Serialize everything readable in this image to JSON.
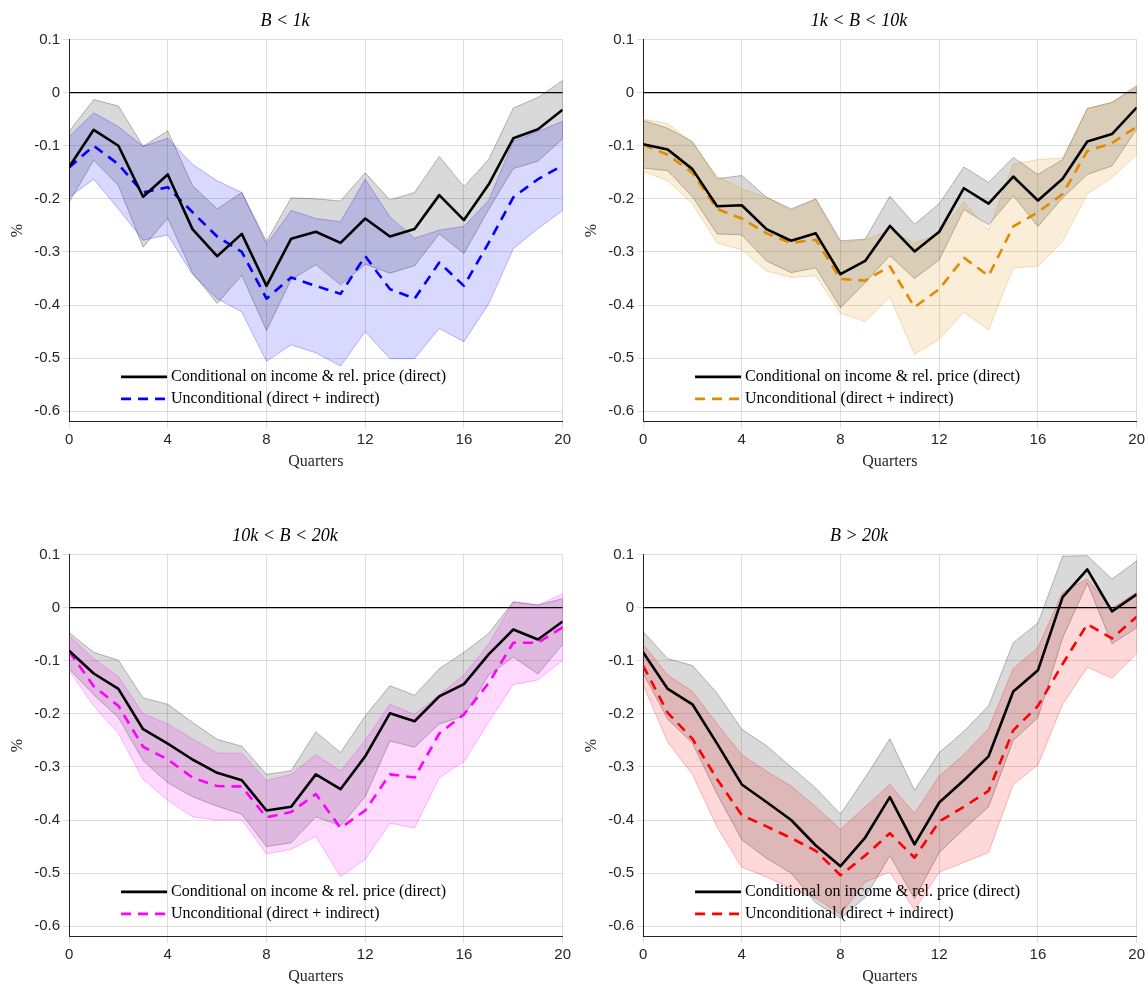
{
  "chart_data": [
    {
      "type": "line",
      "title": "B < 1k",
      "xlabel": "Quarters",
      "ylabel": "%",
      "x": [
        0,
        1,
        2,
        3,
        4,
        5,
        6,
        7,
        8,
        9,
        10,
        11,
        12,
        13,
        14,
        15,
        16,
        17,
        18,
        19,
        20
      ],
      "xlim": [
        0,
        20
      ],
      "xticks": [
        0,
        4,
        8,
        12,
        16,
        20
      ],
      "ylim": [
        -0.62,
        0.1
      ],
      "yticks": [
        -0.6,
        -0.5,
        -0.4,
        -0.3,
        -0.2,
        -0.1,
        0,
        0.1
      ],
      "grid": true,
      "legend": "bottom",
      "marker": "none",
      "ref_lines": [
        {
          "axis": "y",
          "value": 0,
          "color": "#000000"
        }
      ],
      "series": [
        {
          "name": "Conditional on income & rel. price (direct)",
          "color": "#000000",
          "line_style": "solid",
          "values": [
            -0.14,
            -0.07,
            -0.1,
            -0.196,
            -0.154,
            -0.257,
            -0.308,
            -0.266,
            -0.364,
            -0.275,
            -0.262,
            -0.283,
            -0.237,
            -0.271,
            -0.257,
            -0.193,
            -0.24,
            -0.173,
            -0.086,
            -0.069,
            -0.032
          ],
          "upper": [
            -0.073,
            -0.013,
            -0.025,
            -0.101,
            -0.072,
            -0.175,
            -0.219,
            -0.188,
            -0.28,
            -0.198,
            -0.2,
            -0.204,
            -0.151,
            -0.202,
            -0.188,
            -0.12,
            -0.177,
            -0.126,
            -0.029,
            -0.009,
            0.023
          ],
          "lower": [
            -0.207,
            -0.127,
            -0.175,
            -0.291,
            -0.236,
            -0.339,
            -0.397,
            -0.344,
            -0.448,
            -0.352,
            -0.324,
            -0.362,
            -0.323,
            -0.34,
            -0.326,
            -0.266,
            -0.303,
            -0.22,
            -0.143,
            -0.129,
            -0.087
          ]
        },
        {
          "name": "Unconditional (direct + indirect)",
          "color": "#0000ff",
          "line_style": "dashed",
          "values": [
            -0.141,
            -0.1,
            -0.135,
            -0.188,
            -0.178,
            -0.225,
            -0.271,
            -0.3,
            -0.388,
            -0.348,
            -0.364,
            -0.379,
            -0.308,
            -0.37,
            -0.388,
            -0.32,
            -0.364,
            -0.283,
            -0.197,
            -0.163,
            -0.137
          ],
          "upper": [
            -0.083,
            -0.038,
            -0.064,
            -0.101,
            -0.086,
            -0.135,
            -0.166,
            -0.188,
            -0.286,
            -0.222,
            -0.237,
            -0.243,
            -0.163,
            -0.234,
            -0.274,
            -0.259,
            -0.252,
            -0.203,
            -0.092,
            -0.073,
            -0.054
          ],
          "lower": [
            -0.197,
            -0.163,
            -0.219,
            -0.278,
            -0.268,
            -0.342,
            -0.388,
            -0.413,
            -0.506,
            -0.475,
            -0.49,
            -0.515,
            -0.45,
            -0.501,
            -0.501,
            -0.444,
            -0.469,
            -0.398,
            -0.294,
            -0.256,
            -0.222
          ]
        }
      ]
    },
    {
      "type": "line",
      "title": "1k < B < 10k",
      "xlabel": "Quarters",
      "ylabel": "%",
      "x": [
        0,
        1,
        2,
        3,
        4,
        5,
        6,
        7,
        8,
        9,
        10,
        11,
        12,
        13,
        14,
        15,
        16,
        17,
        18,
        19,
        20
      ],
      "xlim": [
        0,
        20
      ],
      "xticks": [
        0,
        4,
        8,
        12,
        16,
        20
      ],
      "ylim": [
        -0.62,
        0.1
      ],
      "yticks": [
        -0.6,
        -0.5,
        -0.4,
        -0.3,
        -0.2,
        -0.1,
        0,
        0.1
      ],
      "grid": true,
      "legend": "bottom",
      "marker": "none",
      "ref_lines": [
        {
          "axis": "y",
          "value": 0,
          "color": "#000000"
        }
      ],
      "series": [
        {
          "name": "Conditional on income & rel. price (direct)",
          "color": "#000000",
          "line_style": "solid",
          "values": [
            -0.097,
            -0.107,
            -0.144,
            -0.214,
            -0.212,
            -0.257,
            -0.279,
            -0.265,
            -0.342,
            -0.317,
            -0.251,
            -0.299,
            -0.262,
            -0.18,
            -0.209,
            -0.158,
            -0.203,
            -0.162,
            -0.092,
            -0.078,
            -0.028
          ],
          "upper": [
            -0.052,
            -0.067,
            -0.092,
            -0.162,
            -0.156,
            -0.197,
            -0.219,
            -0.2,
            -0.279,
            -0.276,
            -0.195,
            -0.248,
            -0.209,
            -0.14,
            -0.169,
            -0.122,
            -0.154,
            -0.126,
            -0.03,
            -0.018,
            0.013
          ],
          "lower": [
            -0.142,
            -0.147,
            -0.196,
            -0.266,
            -0.268,
            -0.317,
            -0.339,
            -0.33,
            -0.405,
            -0.358,
            -0.307,
            -0.35,
            -0.315,
            -0.22,
            -0.249,
            -0.194,
            -0.252,
            -0.198,
            -0.154,
            -0.138,
            -0.069
          ]
        },
        {
          "name": "Unconditional (direct + indirect)",
          "color": "#e08a00",
          "line_style": "dashed",
          "values": [
            -0.098,
            -0.117,
            -0.151,
            -0.219,
            -0.237,
            -0.265,
            -0.283,
            -0.277,
            -0.351,
            -0.354,
            -0.327,
            -0.404,
            -0.37,
            -0.311,
            -0.345,
            -0.252,
            -0.225,
            -0.191,
            -0.11,
            -0.095,
            -0.064
          ],
          "upper": [
            -0.05,
            -0.058,
            -0.095,
            -0.157,
            -0.181,
            -0.197,
            -0.222,
            -0.202,
            -0.283,
            -0.277,
            -0.259,
            -0.283,
            -0.265,
            -0.206,
            -0.259,
            -0.135,
            -0.126,
            -0.123,
            -0.03,
            -0.019,
            0.01
          ],
          "lower": [
            -0.148,
            -0.166,
            -0.209,
            -0.283,
            -0.296,
            -0.336,
            -0.348,
            -0.345,
            -0.416,
            -0.431,
            -0.385,
            -0.493,
            -0.465,
            -0.413,
            -0.447,
            -0.33,
            -0.327,
            -0.28,
            -0.191,
            -0.16,
            -0.117
          ]
        }
      ]
    },
    {
      "type": "line",
      "title": "10k < B < 20k",
      "xlabel": "Quarters",
      "ylabel": "%",
      "x": [
        0,
        1,
        2,
        3,
        4,
        5,
        6,
        7,
        8,
        9,
        10,
        11,
        12,
        13,
        14,
        15,
        16,
        17,
        18,
        19,
        20
      ],
      "xlim": [
        0,
        20
      ],
      "xticks": [
        0,
        4,
        8,
        12,
        16,
        20
      ],
      "ylim": [
        -0.62,
        0.1
      ],
      "yticks": [
        -0.6,
        -0.5,
        -0.4,
        -0.3,
        -0.2,
        -0.1,
        0,
        0.1
      ],
      "grid": true,
      "legend": "bottom",
      "marker": "none",
      "ref_lines": [
        {
          "axis": "y",
          "value": 0,
          "color": "#000000"
        }
      ],
      "series": [
        {
          "name": "Conditional on income & rel. price (direct)",
          "color": "#000000",
          "line_style": "solid",
          "values": [
            -0.081,
            -0.124,
            -0.153,
            -0.229,
            -0.256,
            -0.286,
            -0.311,
            -0.325,
            -0.382,
            -0.375,
            -0.314,
            -0.342,
            -0.28,
            -0.199,
            -0.214,
            -0.167,
            -0.144,
            -0.088,
            -0.041,
            -0.06,
            -0.026
          ],
          "upper": [
            -0.047,
            -0.084,
            -0.099,
            -0.17,
            -0.182,
            -0.216,
            -0.248,
            -0.261,
            -0.314,
            -0.307,
            -0.234,
            -0.273,
            -0.204,
            -0.147,
            -0.165,
            -0.115,
            -0.084,
            -0.049,
            0.011,
            0.005,
            0.017
          ],
          "lower": [
            -0.115,
            -0.164,
            -0.207,
            -0.288,
            -0.33,
            -0.356,
            -0.374,
            -0.389,
            -0.45,
            -0.443,
            -0.394,
            -0.411,
            -0.356,
            -0.251,
            -0.263,
            -0.219,
            -0.204,
            -0.127,
            -0.093,
            -0.125,
            -0.069
          ]
        },
        {
          "name": "Unconditional (direct + indirect)",
          "color": "#ff00ff",
          "line_style": "dashed",
          "values": [
            -0.082,
            -0.148,
            -0.185,
            -0.262,
            -0.286,
            -0.32,
            -0.336,
            -0.337,
            -0.395,
            -0.385,
            -0.351,
            -0.415,
            -0.382,
            -0.314,
            -0.32,
            -0.237,
            -0.201,
            -0.142,
            -0.066,
            -0.066,
            -0.037
          ],
          "upper": [
            -0.053,
            -0.096,
            -0.13,
            -0.2,
            -0.219,
            -0.247,
            -0.274,
            -0.274,
            -0.326,
            -0.314,
            -0.277,
            -0.308,
            -0.25,
            -0.182,
            -0.201,
            -0.164,
            -0.127,
            -0.069,
            0.011,
            0.005,
            0.026
          ],
          "lower": [
            -0.118,
            -0.185,
            -0.237,
            -0.323,
            -0.363,
            -0.394,
            -0.4,
            -0.4,
            -0.464,
            -0.455,
            -0.431,
            -0.507,
            -0.474,
            -0.406,
            -0.415,
            -0.32,
            -0.29,
            -0.216,
            -0.145,
            -0.136,
            -0.099
          ]
        }
      ]
    },
    {
      "type": "line",
      "title": "B > 20k",
      "xlabel": "Quarters",
      "ylabel": "%",
      "x": [
        0,
        1,
        2,
        3,
        4,
        5,
        6,
        7,
        8,
        9,
        10,
        11,
        12,
        13,
        14,
        15,
        16,
        17,
        18,
        19,
        20
      ],
      "xlim": [
        0,
        20
      ],
      "xticks": [
        0,
        4,
        8,
        12,
        16,
        20
      ],
      "ylim": [
        -0.62,
        0.1
      ],
      "yticks": [
        -0.6,
        -0.5,
        -0.4,
        -0.3,
        -0.2,
        -0.1,
        0,
        0.1
      ],
      "grid": true,
      "legend": "bottom",
      "marker": "none",
      "ref_lines": [
        {
          "axis": "y",
          "value": 0,
          "color": "#000000"
        }
      ],
      "series": [
        {
          "name": "Conditional on income & rel. price (direct)",
          "color": "#000000",
          "line_style": "solid",
          "values": [
            -0.084,
            -0.153,
            -0.182,
            -0.256,
            -0.333,
            -0.366,
            -0.4,
            -0.448,
            -0.487,
            -0.433,
            -0.357,
            -0.446,
            -0.367,
            -0.325,
            -0.28,
            -0.158,
            -0.118,
            0.02,
            0.072,
            -0.007,
            0.025
          ],
          "upper": [
            -0.045,
            -0.096,
            -0.109,
            -0.161,
            -0.229,
            -0.26,
            -0.3,
            -0.34,
            -0.389,
            -0.32,
            -0.247,
            -0.344,
            -0.273,
            -0.233,
            -0.185,
            -0.066,
            -0.029,
            0.097,
            0.098,
            0.054,
            0.088
          ],
          "lower": [
            -0.123,
            -0.21,
            -0.255,
            -0.351,
            -0.437,
            -0.472,
            -0.5,
            -0.556,
            -0.585,
            -0.546,
            -0.467,
            -0.548,
            -0.461,
            -0.417,
            -0.375,
            -0.25,
            -0.207,
            -0.057,
            0.046,
            -0.068,
            -0.038
          ]
        },
        {
          "name": "Unconditional (direct + indirect)",
          "color": "#ff0000",
          "line_style": "dashed",
          "values": [
            -0.109,
            -0.198,
            -0.247,
            -0.323,
            -0.391,
            -0.412,
            -0.434,
            -0.458,
            -0.504,
            -0.467,
            -0.425,
            -0.471,
            -0.403,
            -0.375,
            -0.345,
            -0.231,
            -0.185,
            -0.106,
            -0.031,
            -0.058,
            -0.017
          ],
          "upper": [
            -0.069,
            -0.127,
            -0.158,
            -0.219,
            -0.277,
            -0.308,
            -0.336,
            -0.375,
            -0.418,
            -0.375,
            -0.333,
            -0.388,
            -0.317,
            -0.277,
            -0.228,
            -0.115,
            -0.075,
            0.029,
            0.054,
            -0.001,
            0.029
          ],
          "lower": [
            -0.145,
            -0.253,
            -0.314,
            -0.413,
            -0.489,
            -0.507,
            -0.529,
            -0.547,
            -0.578,
            -0.517,
            -0.498,
            -0.569,
            -0.498,
            -0.48,
            -0.461,
            -0.333,
            -0.296,
            -0.182,
            -0.112,
            -0.133,
            -0.087
          ]
        }
      ]
    }
  ]
}
